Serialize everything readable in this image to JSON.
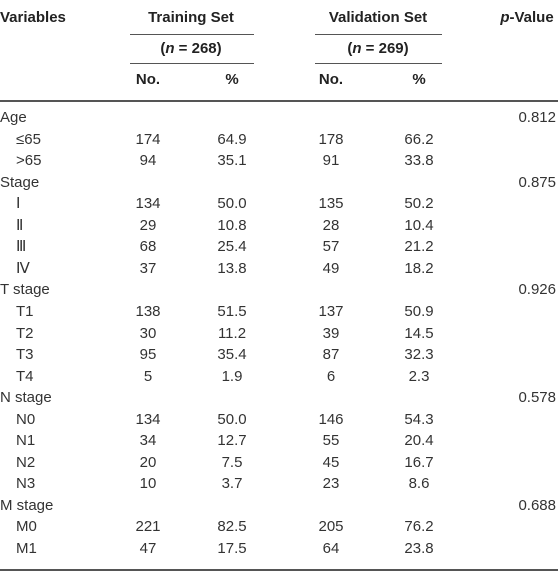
{
  "table": {
    "header": {
      "variables": "Variables",
      "groups": [
        {
          "name": "Training Set",
          "n": {
            "open": "(",
            "var": "n",
            "rest": " = 268)"
          },
          "cols": [
            "No.",
            "%"
          ]
        },
        {
          "name": "Validation Set",
          "n": {
            "open": "(",
            "var": "n",
            "rest": " = 269)"
          },
          "cols": [
            "No.",
            "%"
          ]
        }
      ],
      "p_value": {
        "var": "p",
        "rest": "-Value"
      }
    },
    "sections": [
      {
        "label": "Age",
        "p": "0.812",
        "rows": [
          {
            "label": "≤65",
            "cells": [
              "174",
              "64.9",
              "178",
              "66.2"
            ]
          },
          {
            "label": ">65",
            "cells": [
              "94",
              "35.1",
              "91",
              "33.8"
            ]
          }
        ]
      },
      {
        "label": "Stage",
        "p": "0.875",
        "rows": [
          {
            "label": "Ⅰ",
            "cells": [
              "134",
              "50.0",
              "135",
              "50.2"
            ]
          },
          {
            "label": "Ⅱ",
            "cells": [
              "29",
              "10.8",
              "28",
              "10.4"
            ]
          },
          {
            "label": "Ⅲ",
            "cells": [
              "68",
              "25.4",
              "57",
              "21.2"
            ]
          },
          {
            "label": "Ⅳ",
            "cells": [
              "37",
              "13.8",
              "49",
              "18.2"
            ]
          }
        ]
      },
      {
        "label": "T stage",
        "p": "0.926",
        "rows": [
          {
            "label": "T1",
            "cells": [
              "138",
              "51.5",
              "137",
              "50.9"
            ]
          },
          {
            "label": "T2",
            "cells": [
              "30",
              "11.2",
              "39",
              "14.5"
            ]
          },
          {
            "label": "T3",
            "cells": [
              "95",
              "35.4",
              "87",
              "32.3"
            ]
          },
          {
            "label": "T4",
            "cells": [
              "5",
              "1.9",
              "6",
              "2.3"
            ]
          }
        ]
      },
      {
        "label": "N stage",
        "p": "0.578",
        "rows": [
          {
            "label": "N0",
            "cells": [
              "134",
              "50.0",
              "146",
              "54.3"
            ]
          },
          {
            "label": "N1",
            "cells": [
              "34",
              "12.7",
              "55",
              "20.4"
            ]
          },
          {
            "label": "N2",
            "cells": [
              "20",
              "7.5",
              "45",
              "16.7"
            ]
          },
          {
            "label": "N3",
            "cells": [
              "10",
              "3.7",
              "23",
              "8.6"
            ]
          }
        ]
      },
      {
        "label": "M stage",
        "p": "0.688",
        "rows": [
          {
            "label": "M0",
            "cells": [
              "221",
              "82.5",
              "205",
              "76.2"
            ]
          },
          {
            "label": "M1",
            "cells": [
              "47",
              "17.5",
              "64",
              "23.8"
            ]
          }
        ]
      }
    ]
  }
}
